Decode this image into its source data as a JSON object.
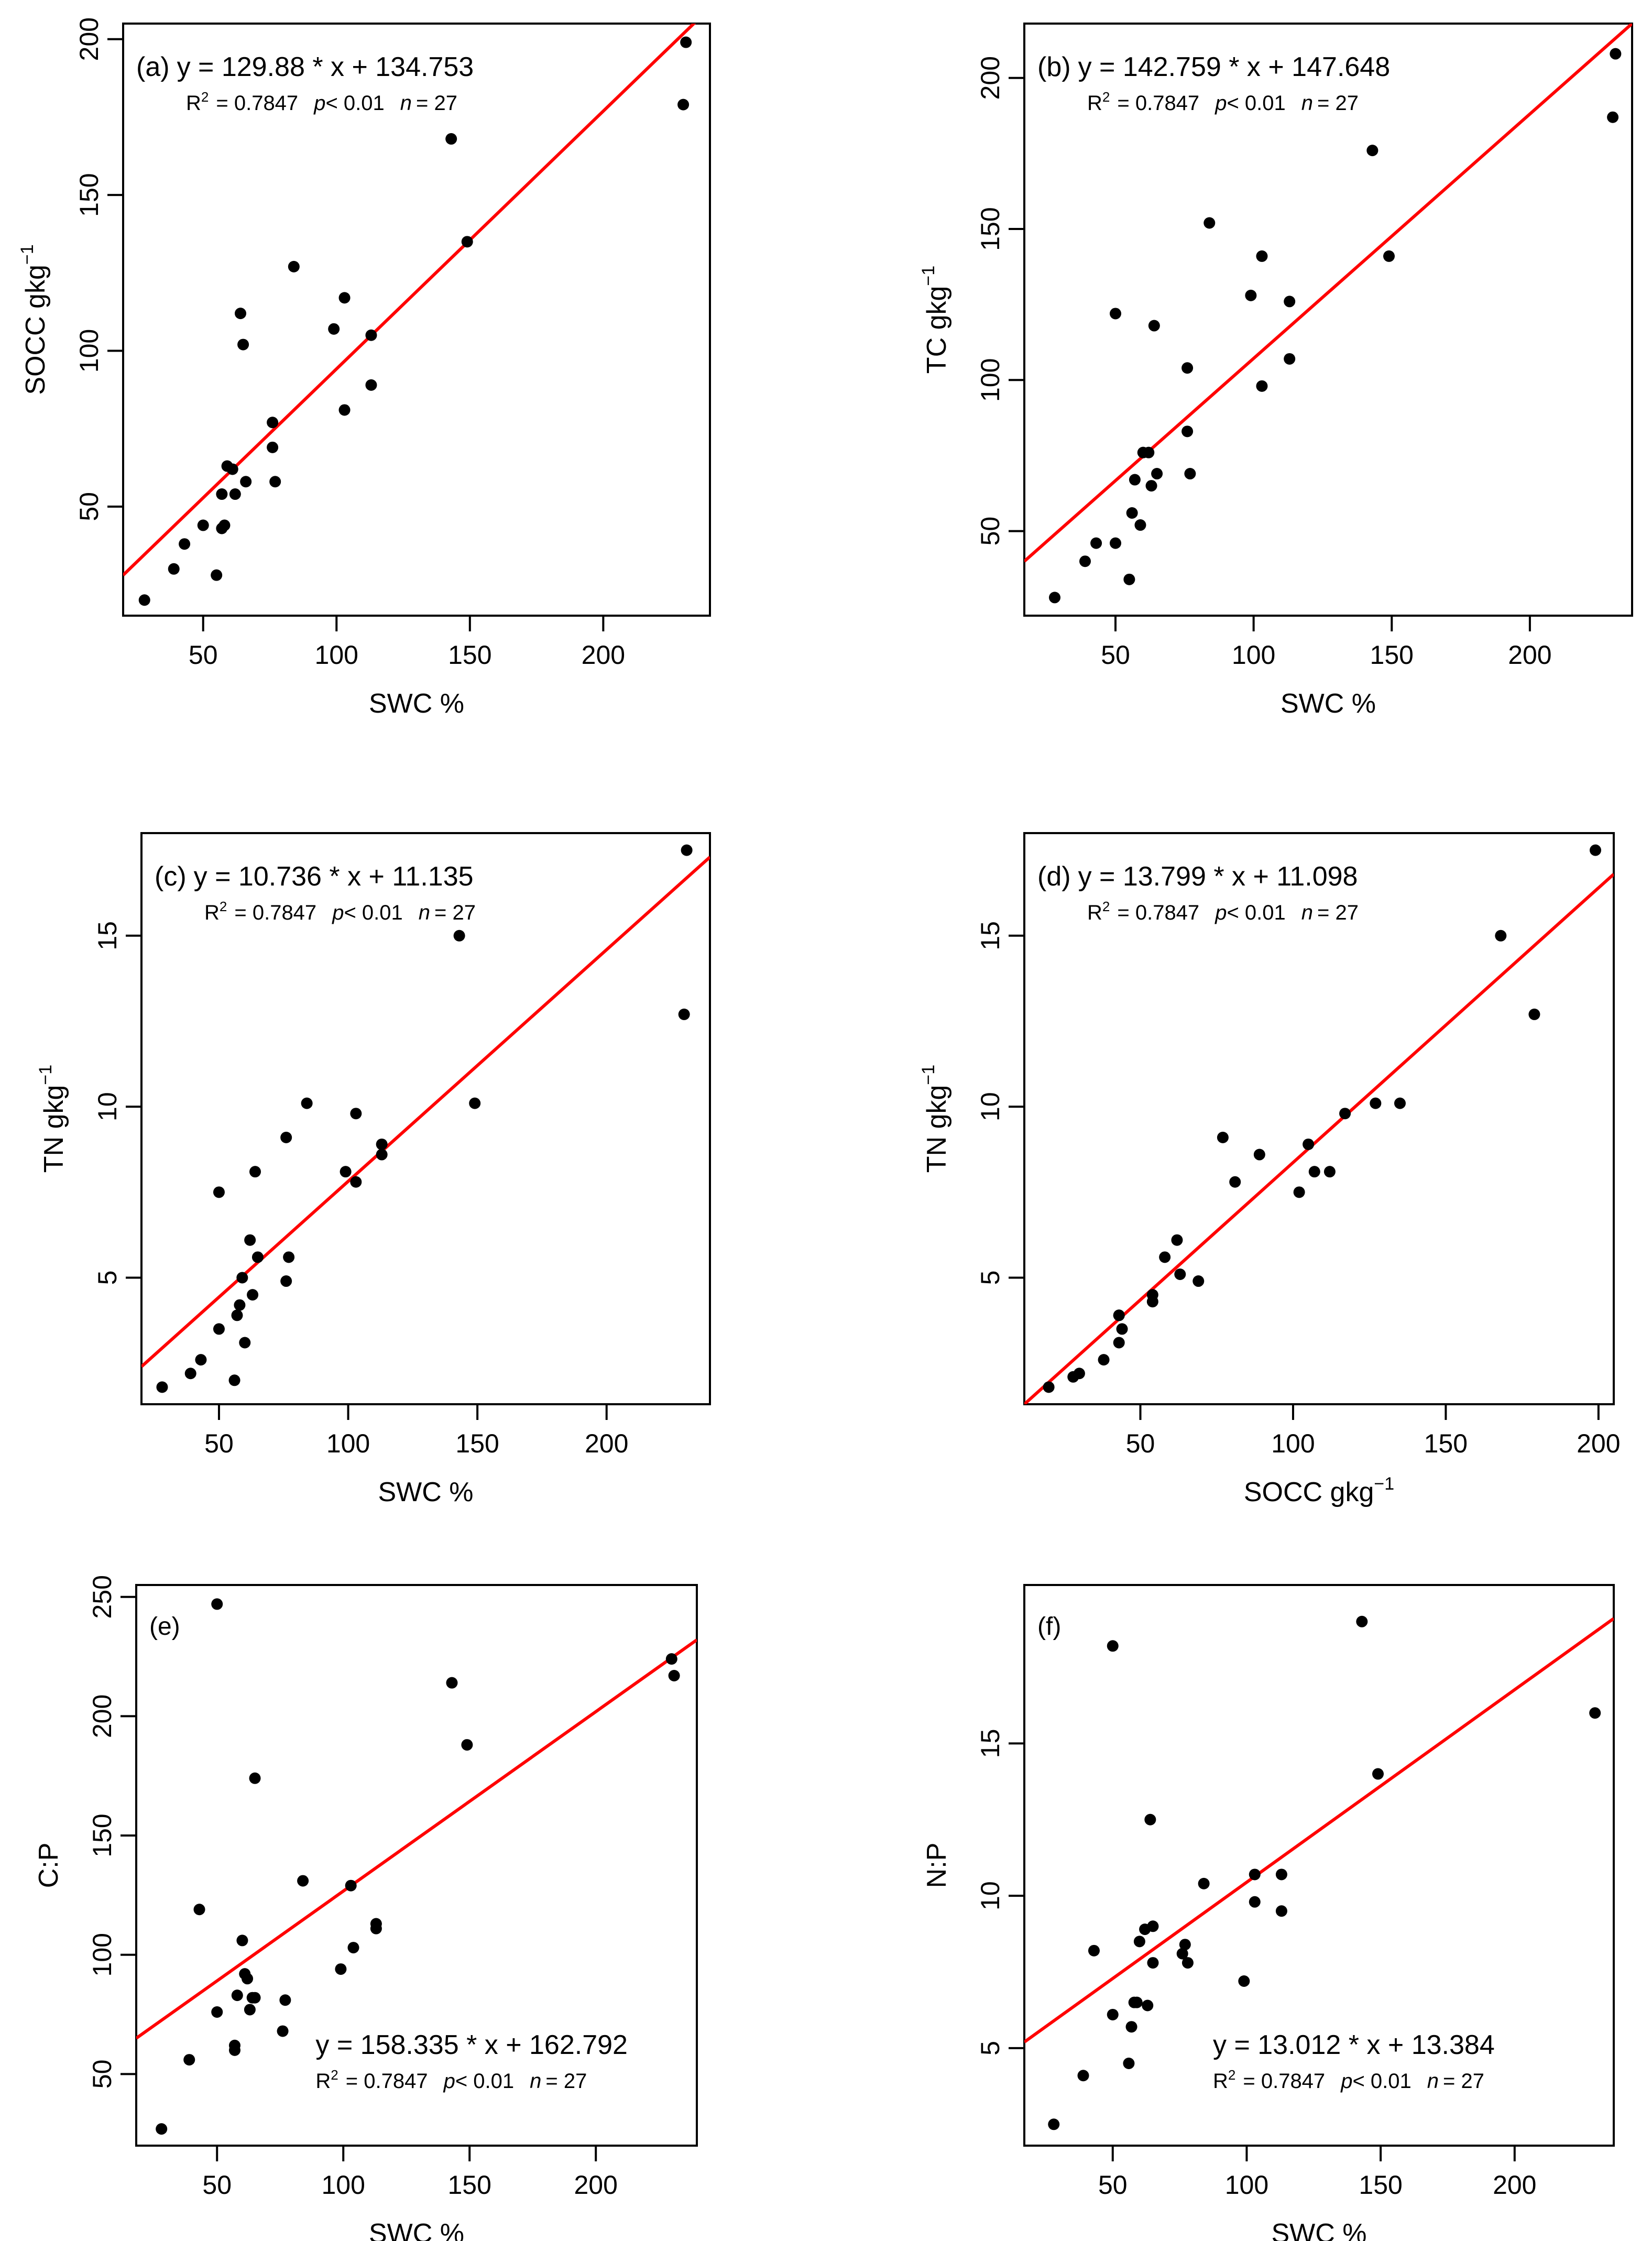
{
  "colors": {
    "regression_line": "#ff0000",
    "points": "#000000",
    "frame": "#000000"
  },
  "chart_data": [
    {
      "id": "a",
      "type": "scatter",
      "label": "(a)",
      "equation": "y = 129.88 * x + 134.753",
      "stats": {
        "r2_label": "R",
        "r2_value": "= 0.7847",
        "p_label": "p",
        "p_value": "< 0.01",
        "n_label": "n",
        "n_value": "= 27"
      },
      "xlabel": "SWC %",
      "ylabel": "SOCC  gkg",
      "ylabel_sup": "−1",
      "xlim": [
        20,
        240
      ],
      "ylim": [
        15,
        205
      ],
      "xticks": [
        50,
        100,
        150,
        200
      ],
      "yticks": [
        50,
        100,
        150,
        200
      ],
      "annotation_position": "top-left",
      "fit": {
        "x": [
          20,
          240
        ],
        "y": [
          28,
          210
        ]
      },
      "x": [
        28,
        39,
        43,
        50,
        55,
        57,
        57,
        58,
        59,
        61,
        62,
        64,
        66,
        76,
        76,
        77,
        84,
        99,
        103,
        103,
        113,
        113,
        143,
        149,
        230,
        231,
        65
      ],
      "y": [
        20,
        30,
        38,
        44,
        28,
        43,
        54,
        44,
        63,
        62,
        54,
        112,
        58,
        69,
        77,
        58,
        127,
        107,
        117,
        81,
        105,
        89,
        168,
        135,
        179,
        199,
        102
      ]
    },
    {
      "id": "b",
      "type": "scatter",
      "label": "(b)",
      "equation": "y = 142.759 * x + 147.648",
      "stats": {
        "r2_label": "R",
        "r2_value": "= 0.7847",
        "p_label": "p",
        "p_value": "< 0.01",
        "n_label": "n",
        "n_value": "= 27"
      },
      "xlabel": "SWC %",
      "ylabel": "TC  gkg",
      "ylabel_sup": "−1",
      "xlim": [
        17,
        237
      ],
      "ylim": [
        22,
        218
      ],
      "xticks": [
        50,
        100,
        150,
        200
      ],
      "yticks": [
        50,
        100,
        150,
        200
      ],
      "annotation_position": "top-left",
      "fit": {
        "x": [
          17,
          237
        ],
        "y": [
          40,
          218
        ]
      },
      "x": [
        28,
        39,
        43,
        50,
        50,
        55,
        56,
        57,
        59,
        60,
        62,
        63,
        64,
        65,
        76,
        76,
        77,
        84,
        99,
        103,
        103,
        113,
        113,
        143,
        149,
        230,
        231
      ],
      "y": [
        28,
        40,
        46,
        46,
        122,
        34,
        56,
        67,
        52,
        76,
        76,
        65,
        118,
        69,
        104,
        83,
        69,
        152,
        128,
        141,
        98,
        107,
        126,
        176,
        141,
        187,
        208
      ]
    },
    {
      "id": "c",
      "type": "scatter",
      "label": "(c)",
      "equation": "y = 10.736 * x + 11.135",
      "stats": {
        "r2_label": "R",
        "r2_value": "= 0.7847",
        "p_label": "p",
        "p_value": "< 0.01",
        "n_label": "n",
        "n_value": "= 27"
      },
      "xlabel": "SWC %",
      "ylabel": "TN  gkg",
      "ylabel_sup": "−1",
      "xlim": [
        20,
        240
      ],
      "ylim": [
        1.3,
        18
      ],
      "xticks": [
        50,
        100,
        150,
        200
      ],
      "yticks": [
        5,
        10,
        15
      ],
      "annotation_position": "top-left",
      "fit": {
        "x": [
          20,
          240
        ],
        "y": [
          2.4,
          17.3
        ]
      },
      "x": [
        28,
        39,
        43,
        50,
        50,
        56,
        57,
        58,
        59,
        60,
        62,
        63,
        64,
        65,
        76,
        76,
        77,
        84,
        99,
        103,
        103,
        113,
        113,
        143,
        149,
        230,
        231
      ],
      "y": [
        1.8,
        2.2,
        2.6,
        3.5,
        7.5,
        2.0,
        3.9,
        4.2,
        5.0,
        3.1,
        6.1,
        4.5,
        8.1,
        5.6,
        9.1,
        4.9,
        5.6,
        10.1,
        8.1,
        9.8,
        7.8,
        8.9,
        8.6,
        15.0,
        10.1,
        12.7,
        17.5
      ]
    },
    {
      "id": "d",
      "type": "scatter",
      "label": "(d)",
      "equation": "y = 13.799 * x + 11.098",
      "stats": {
        "r2_label": "R",
        "r2_value": "= 0.7847",
        "p_label": "p",
        "p_value": "< 0.01",
        "n_label": "n",
        "n_value": "= 27"
      },
      "xlabel": "SOCC  gkg",
      "xlabel_sup": "−1",
      "ylabel": "TN  gkg",
      "ylabel_sup": "−1",
      "xlim": [
        12,
        205
      ],
      "ylim": [
        1.3,
        18
      ],
      "xticks": [
        50,
        100,
        150,
        200
      ],
      "yticks": [
        5,
        10,
        15
      ],
      "annotation_position": "top-left",
      "fit": {
        "x": [
          12,
          205
        ],
        "y": [
          1.3,
          16.8
        ]
      },
      "x": [
        20,
        28,
        30,
        38,
        43,
        43,
        44,
        54,
        54,
        58,
        62,
        63,
        69,
        77,
        81,
        89,
        102,
        105,
        107,
        112,
        117,
        127,
        135,
        168,
        179,
        199,
        43
      ],
      "y": [
        1.8,
        2.1,
        2.2,
        2.6,
        3.9,
        3.1,
        3.5,
        4.5,
        4.3,
        5.6,
        6.1,
        5.1,
        4.9,
        9.1,
        7.8,
        8.6,
        7.5,
        8.9,
        8.1,
        8.1,
        9.8,
        10.1,
        10.1,
        15.0,
        12.7,
        17.5,
        3.9
      ]
    },
    {
      "id": "e",
      "type": "scatter",
      "label": "(e)",
      "equation": "y = 158.335 * x + 162.792",
      "stats": {
        "r2_label": "R",
        "r2_value": "= 0.7847",
        "p_label": "p",
        "p_value": "< 0.01",
        "n_label": "n",
        "n_value": "= 27"
      },
      "xlabel": "SWC %",
      "ylabel": "C:P",
      "xlim": [
        18,
        240
      ],
      "ylim": [
        20,
        255
      ],
      "xticks": [
        50,
        100,
        150,
        200
      ],
      "yticks": [
        50,
        100,
        150,
        200,
        250
      ],
      "annotation_position": "bottom-right",
      "fit": {
        "x": [
          18,
          240
        ],
        "y": [
          65,
          232
        ]
      },
      "x": [
        28,
        39,
        43,
        50,
        50,
        57,
        57,
        58,
        60,
        61,
        62,
        63,
        64,
        65,
        65,
        76,
        77,
        84,
        99,
        103,
        104,
        113,
        113,
        143,
        149,
        230,
        231
      ],
      "y": [
        27,
        56,
        119,
        76,
        247,
        60,
        62,
        83,
        106,
        92,
        90,
        77,
        82,
        174,
        82,
        68,
        81,
        131,
        94,
        129,
        103,
        111,
        113,
        214,
        188,
        224,
        217
      ]
    },
    {
      "id": "f",
      "type": "scatter",
      "label": "(f)",
      "equation": "y = 13.012 * x + 13.384",
      "stats": {
        "r2_label": "R",
        "r2_value": "= 0.7847",
        "p_label": "p",
        "p_value": "< 0.01",
        "n_label": "n",
        "n_value": "= 27"
      },
      "xlabel": "SWC %",
      "ylabel": "N:P",
      "xlim": [
        17,
        237
      ],
      "ylim": [
        1.8,
        20.2
      ],
      "xticks": [
        50,
        100,
        150,
        200
      ],
      "yticks": [
        5,
        10,
        15
      ],
      "annotation_position": "bottom-right",
      "fit": {
        "x": [
          17,
          237
        ],
        "y": [
          5.2,
          19.1
        ]
      },
      "x": [
        28,
        39,
        43,
        50,
        50,
        56,
        57,
        58,
        59,
        60,
        62,
        63,
        64,
        65,
        65,
        76,
        77,
        78,
        84,
        99,
        103,
        103,
        113,
        113,
        143,
        149,
        230
      ],
      "y": [
        2.5,
        4.1,
        8.2,
        6.1,
        18.2,
        4.5,
        5.7,
        6.5,
        6.5,
        8.5,
        8.9,
        6.4,
        12.5,
        7.8,
        9.0,
        8.1,
        8.4,
        7.8,
        10.4,
        7.2,
        10.7,
        9.8,
        10.7,
        9.5,
        19.0,
        14.0,
        16.0
      ]
    }
  ]
}
